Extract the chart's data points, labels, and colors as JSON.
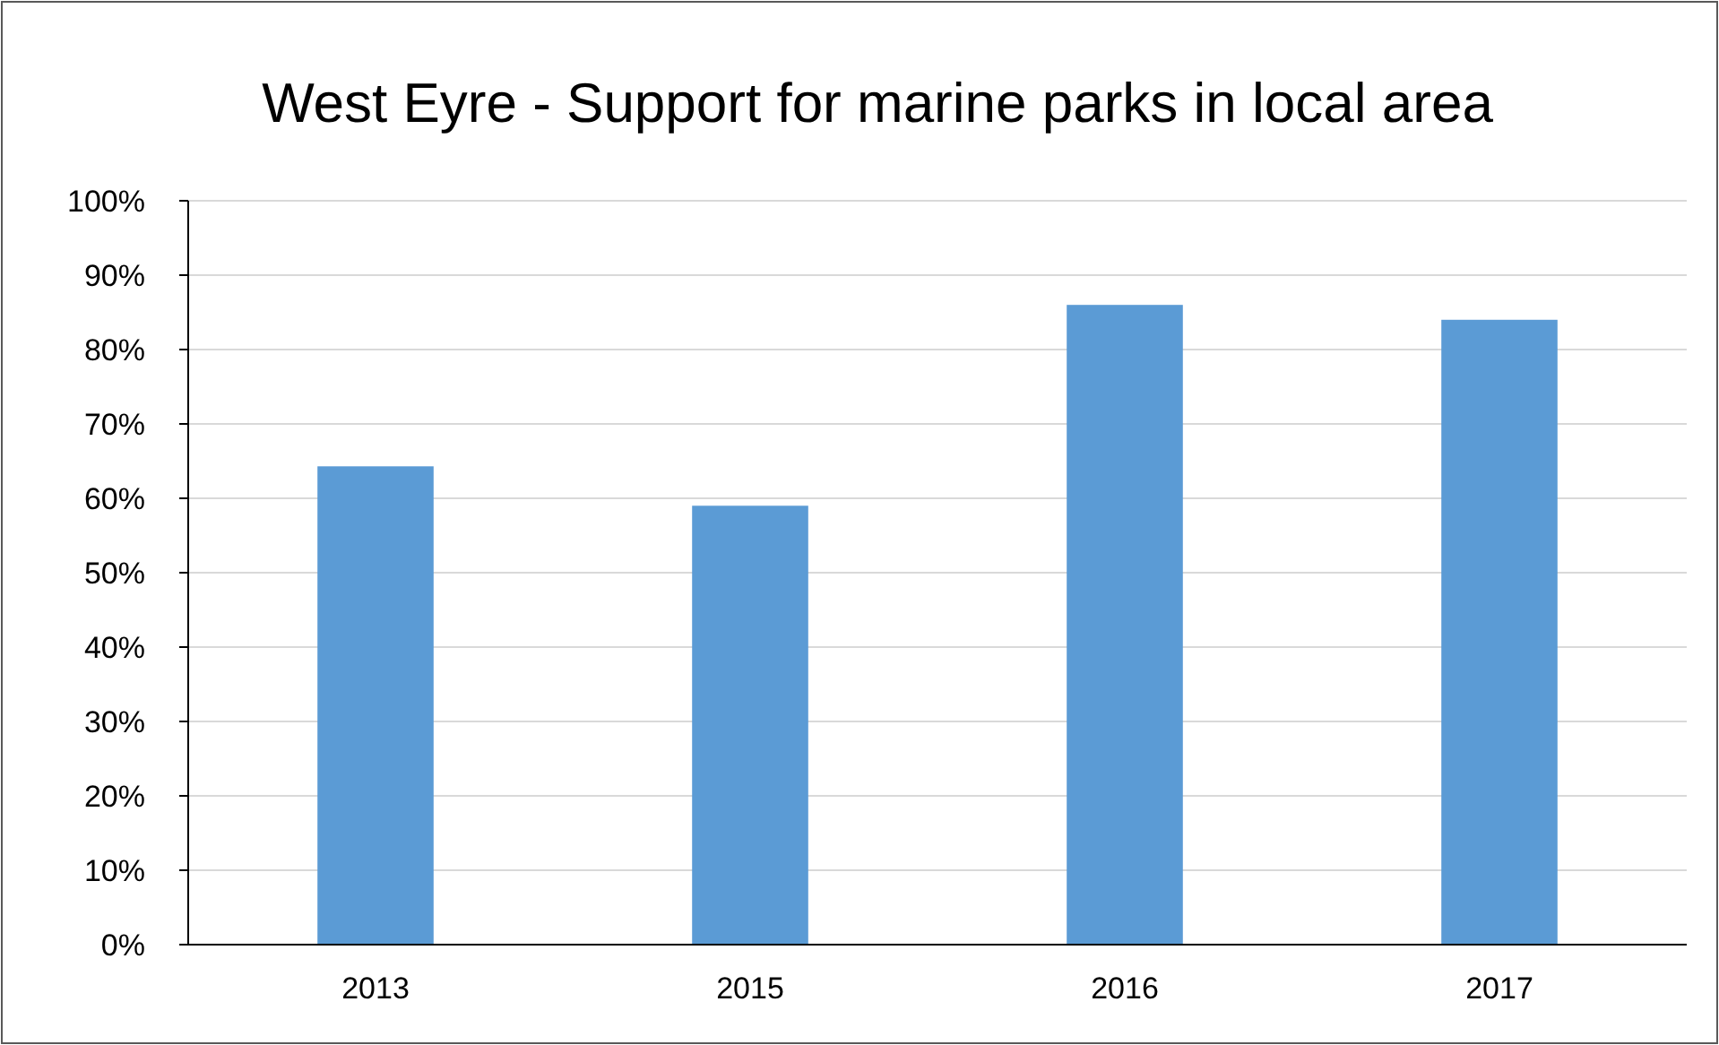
{
  "chart_data": {
    "type": "bar",
    "title": "West Eyre - Support for marine parks in local area",
    "categories": [
      "2013",
      "2015",
      "2016",
      "2017"
    ],
    "values": [
      64.3,
      59,
      86,
      84
    ],
    "color": "#5b9bd5",
    "ylim": [
      0,
      100
    ],
    "yticks": [
      {
        "value": 0,
        "label": "0%"
      },
      {
        "value": 10,
        "label": "10%"
      },
      {
        "value": 20,
        "label": "20%"
      },
      {
        "value": 30,
        "label": "30%"
      },
      {
        "value": 40,
        "label": "40%"
      },
      {
        "value": 50,
        "label": "50%"
      },
      {
        "value": 60,
        "label": "60%"
      },
      {
        "value": 70,
        "label": "70%"
      },
      {
        "value": 80,
        "label": "80%"
      },
      {
        "value": 90,
        "label": "90%"
      },
      {
        "value": 100,
        "label": "100%"
      }
    ],
    "grid": "y"
  }
}
